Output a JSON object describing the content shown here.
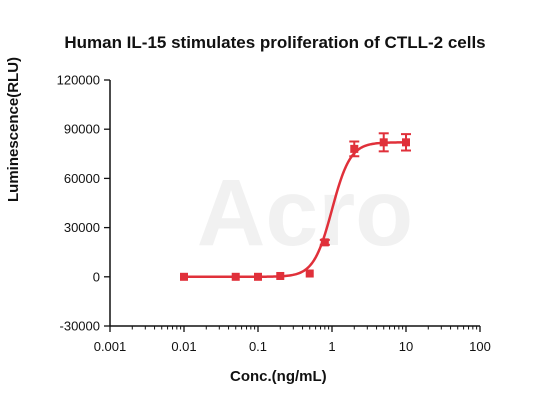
{
  "chart_data": {
    "type": "scatter",
    "title": "Human IL-15 stimulates proliferation of CTLL-2 cells",
    "xlabel": "Conc.(ng/mL)",
    "ylabel": "Luminescence(RLU)",
    "x_scale": "log",
    "xlim": [
      0.001,
      100
    ],
    "ylim": [
      -30000,
      120000
    ],
    "x_ticks": [
      "0.001",
      "0.01",
      "0.1",
      "1",
      "10",
      "100"
    ],
    "y_ticks": [
      "-30000",
      "0",
      "30000",
      "60000",
      "90000",
      "120000"
    ],
    "color": "#e0303a",
    "grid": false,
    "legend": "none",
    "series": [
      {
        "x": [
          0.01,
          0.05,
          0.1,
          0.2,
          0.5,
          0.8,
          2,
          5,
          10
        ],
        "y": [
          0,
          0,
          0,
          500,
          2000,
          21000,
          78000,
          82000,
          82000
        ],
        "error": [
          0,
          0,
          0,
          0,
          0,
          1500,
          4500,
          5500,
          5000
        ]
      }
    ],
    "fit": {
      "model": "4PL",
      "bottom": 0,
      "top": 82000,
      "ec50": 1.0,
      "hill": 3.5
    }
  }
}
